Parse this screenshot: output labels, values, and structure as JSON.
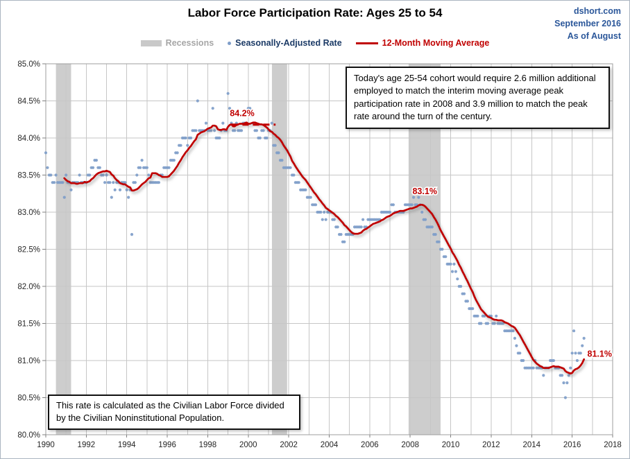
{
  "header": {
    "title": "Labor Force Participation Rate: Ages 25 to 54",
    "brand": "dshort.com",
    "date_line": "September 2016",
    "asof_line": "As of August",
    "brand_color": "#2B579A"
  },
  "legend": {
    "items": [
      {
        "label": "Recessions",
        "swatch": "band",
        "color": "#C9C9C9",
        "label_color": "#A6A6A6"
      },
      {
        "label": "Seasonally-Adjusted Rate",
        "swatch": "dot",
        "color": "#7E9DC9",
        "label_color": "#1B3A66"
      },
      {
        "label": "12-Month Moving Average",
        "swatch": "line",
        "color": "#C00000",
        "label_color": "#C00000"
      }
    ]
  },
  "notes": {
    "cohort_note": "Today's age 25-54  cohort would require 2.6 million additional employed to match the interim moving average peak participation rate in 2008  and 3.9  million to match the peak rate around the turn of the century.",
    "calc_note": "This rate is calculated as the Civilian Labor Force divided by the Civilian Noninstitutional Population."
  },
  "chart_data": {
    "type": "line",
    "title": "Labor Force Participation Rate: Ages 25 to 54",
    "xlabel": "",
    "ylabel": "",
    "xlim": [
      1990,
      2018
    ],
    "ylim": [
      80.0,
      85.0
    ],
    "x_grid_step": 1,
    "y_grid_step": 0.5,
    "grid": true,
    "legend_position": "top",
    "x_tick_labels": [
      "1990",
      "1992",
      "1994",
      "1996",
      "1998",
      "2000",
      "2002",
      "2004",
      "2006",
      "2008",
      "2010",
      "2012",
      "2014",
      "2016",
      "2018"
    ],
    "y_tick_labels": [
      "85.0%",
      "84.5%",
      "84.0%",
      "83.5%",
      "83.0%",
      "82.5%",
      "82.0%",
      "81.5%",
      "81.0%",
      "80.5%",
      "80.0%"
    ],
    "recessions": [
      [
        1990.5,
        1991.25
      ],
      [
        2001.17,
        2001.92
      ],
      [
        2007.92,
        2009.5
      ]
    ],
    "recession_color": "#CDCDCD",
    "series": [
      {
        "name": "Seasonally-Adjusted Rate",
        "style": "scatter",
        "color": "#7E9DC9",
        "start_year": 1990,
        "monthly_values": {
          "1990": [
            83.8,
            83.6,
            83.5,
            83.5,
            83.4,
            83.4,
            83.5,
            83.4,
            83.4,
            83.4,
            83.4,
            83.2
          ],
          "1991": [
            83.5,
            83.4,
            83.4,
            83.3,
            83.4,
            83.4,
            83.4,
            83.4,
            83.5,
            83.4,
            83.4,
            83.4
          ],
          "1992": [
            83.4,
            83.5,
            83.5,
            83.6,
            83.6,
            83.7,
            83.7,
            83.6,
            83.6,
            83.5,
            83.5,
            83.4
          ],
          "1993": [
            83.5,
            83.4,
            83.4,
            83.2,
            83.4,
            83.3,
            83.4,
            83.4,
            83.3,
            83.4,
            83.4,
            83.4
          ],
          "1994": [
            83.3,
            83.2,
            83.3,
            82.7,
            83.4,
            83.4,
            83.5,
            83.6,
            83.6,
            83.7,
            83.6,
            83.6
          ],
          "1995": [
            83.6,
            83.5,
            83.4,
            83.4,
            83.4,
            83.4,
            83.4,
            83.4,
            83.5,
            83.5,
            83.6,
            83.6
          ],
          "1996": [
            83.6,
            83.6,
            83.7,
            83.7,
            83.7,
            83.8,
            83.8,
            83.9,
            83.9,
            84.0,
            84.0,
            84.0
          ],
          "1997": [
            83.9,
            84.0,
            84.0,
            84.1,
            84.1,
            84.1,
            84.5,
            84.1,
            84.1,
            84.1,
            84.1,
            84.2
          ],
          "1998": [
            84.1,
            84.1,
            84.1,
            84.4,
            84.1,
            84.0,
            84.0,
            84.0,
            84.1,
            84.2,
            84.1,
            84.1
          ],
          "1999": [
            84.6,
            84.4,
            84.2,
            84.1,
            84.1,
            84.2,
            84.1,
            84.1,
            84.1,
            84.2,
            84.2,
            84.2
          ],
          "2000": [
            84.4,
            84.4,
            84.3,
            84.2,
            84.1,
            84.1,
            84.0,
            84.0,
            84.1,
            84.1,
            84.0,
            84.0
          ],
          "2001": [
            84.1,
            84.1,
            84.2,
            83.9,
            83.9,
            83.8,
            83.8,
            83.7,
            83.7,
            83.6,
            83.6,
            83.6
          ],
          "2002": [
            83.6,
            83.6,
            83.5,
            83.5,
            83.4,
            83.4,
            83.4,
            83.3,
            83.3,
            83.3,
            83.3,
            83.2
          ],
          "2003": [
            83.2,
            83.2,
            83.1,
            83.1,
            83.1,
            83.0,
            83.0,
            83.0,
            82.9,
            83.0,
            82.9,
            83.0
          ],
          "2004": [
            83.0,
            83.0,
            82.9,
            82.9,
            82.8,
            82.8,
            82.7,
            82.7,
            82.6,
            82.6,
            82.7,
            82.7
          ],
          "2005": [
            82.7,
            82.7,
            82.7,
            82.8,
            82.8,
            82.8,
            82.8,
            82.8,
            82.9,
            82.8,
            82.8,
            82.9
          ],
          "2006": [
            82.9,
            82.9,
            82.9,
            82.9,
            82.9,
            82.9,
            82.9,
            83.0,
            83.0,
            83.0,
            83.0,
            83.0
          ],
          "2007": [
            83.0,
            83.1,
            83.1,
            83.0,
            83.0,
            83.0,
            83.0,
            83.0,
            83.0,
            83.1,
            83.1,
            83.1
          ],
          "2008": [
            83.1,
            83.1,
            83.2,
            83.1,
            83.1,
            83.2,
            83.1,
            83.0,
            82.9,
            82.9,
            82.8,
            82.8
          ],
          "2009": [
            82.8,
            82.8,
            82.7,
            82.7,
            82.6,
            82.6,
            82.5,
            82.5,
            82.4,
            82.4,
            82.3,
            82.3
          ],
          "2010": [
            82.3,
            82.2,
            82.3,
            82.2,
            82.1,
            82.0,
            82.0,
            81.9,
            81.9,
            81.8,
            81.8,
            81.7
          ],
          "2011": [
            81.7,
            81.7,
            81.6,
            81.6,
            81.6,
            81.5,
            81.5,
            81.6,
            81.6,
            81.5,
            81.5,
            81.6
          ],
          "2012": [
            81.6,
            81.5,
            81.5,
            81.6,
            81.5,
            81.5,
            81.5,
            81.5,
            81.4,
            81.4,
            81.4,
            81.4
          ],
          "2013": [
            81.4,
            81.4,
            81.3,
            81.2,
            81.1,
            81.1,
            81.0,
            81.0,
            80.9,
            80.9,
            80.9,
            80.9
          ],
          "2014": [
            80.9,
            80.9,
            81.0,
            80.9,
            80.9,
            80.9,
            80.9,
            80.8,
            80.9,
            80.9,
            80.9,
            81.0
          ],
          "2015": [
            81.0,
            81.0,
            80.9,
            80.9,
            80.9,
            80.8,
            80.8,
            80.7,
            80.5,
            80.7,
            80.8,
            80.9
          ],
          "2016": [
            81.1,
            81.4,
            81.1,
            81.0,
            81.1,
            81.1,
            81.2,
            81.3
          ]
        }
      },
      {
        "name": "12-Month Moving Average",
        "style": "line",
        "color": "#C00000",
        "window": 12,
        "derivation": "trailing 12-month mean of Seasonally-Adjusted Rate monthly_values"
      }
    ],
    "annotations": [
      {
        "label": "84.2%",
        "x": 1999.7,
        "y": 84.33,
        "anchor": "middle",
        "color": "#C00000",
        "dash_y": 84.18,
        "dash_from": 1999.2,
        "dash_to": 2001.35
      },
      {
        "label": "83.1%",
        "x": 2008.72,
        "y": 83.28,
        "anchor": "middle",
        "color": "#C00000"
      },
      {
        "label": "81.1%",
        "x": 2016.75,
        "y": 81.09,
        "anchor": "start",
        "color": "#C00000"
      }
    ]
  }
}
